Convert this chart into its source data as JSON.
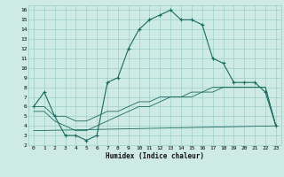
{
  "xlabel": "Humidex (Indice chaleur)",
  "bg_color": "#ceeae4",
  "grid_color": "#9ecec8",
  "line_color": "#1a6b60",
  "xlim": [
    -0.5,
    23.5
  ],
  "ylim": [
    2,
    16.5
  ],
  "xticks": [
    0,
    1,
    2,
    3,
    4,
    5,
    6,
    7,
    8,
    9,
    10,
    11,
    12,
    13,
    14,
    15,
    16,
    17,
    18,
    19,
    20,
    21,
    22,
    23
  ],
  "yticks": [
    2,
    3,
    4,
    5,
    6,
    7,
    8,
    9,
    10,
    11,
    12,
    13,
    14,
    15,
    16
  ],
  "main_x": [
    0,
    1,
    2,
    3,
    4,
    5,
    6,
    7,
    8,
    9,
    10,
    11,
    12,
    13,
    14,
    15,
    16,
    17,
    18,
    19,
    20,
    21,
    22,
    23
  ],
  "main_y": [
    6.0,
    7.5,
    5.0,
    3.0,
    3.0,
    2.5,
    3.0,
    8.5,
    9.0,
    12.0,
    14.0,
    15.0,
    15.5,
    16.0,
    15.0,
    15.0,
    14.5,
    11.0,
    10.5,
    8.5,
    8.5,
    8.5,
    7.5,
    4.0
  ],
  "line2_x": [
    0,
    1,
    2,
    3,
    4,
    5,
    6,
    7,
    8,
    9,
    10,
    11,
    12,
    13,
    14,
    15,
    16,
    17,
    18,
    19,
    20,
    21,
    22,
    23
  ],
  "line2_y": [
    6.0,
    6.0,
    5.0,
    5.0,
    4.5,
    4.5,
    5.0,
    5.5,
    5.5,
    6.0,
    6.5,
    6.5,
    7.0,
    7.0,
    7.0,
    7.5,
    7.5,
    8.0,
    8.0,
    8.0,
    8.0,
    8.0,
    8.0,
    4.0
  ],
  "line3_x": [
    0,
    1,
    2,
    3,
    4,
    5,
    6,
    7,
    8,
    9,
    10,
    11,
    12,
    13,
    14,
    15,
    16,
    17,
    18,
    19,
    20,
    21,
    22,
    23
  ],
  "line3_y": [
    5.5,
    5.5,
    4.5,
    4.0,
    3.5,
    3.5,
    4.0,
    4.5,
    5.0,
    5.5,
    6.0,
    6.0,
    6.5,
    7.0,
    7.0,
    7.0,
    7.5,
    7.5,
    8.0,
    8.0,
    8.0,
    8.0,
    8.0,
    4.0
  ],
  "line4_x": [
    0,
    23
  ],
  "line4_y": [
    3.5,
    4.0
  ],
  "marker": "+"
}
